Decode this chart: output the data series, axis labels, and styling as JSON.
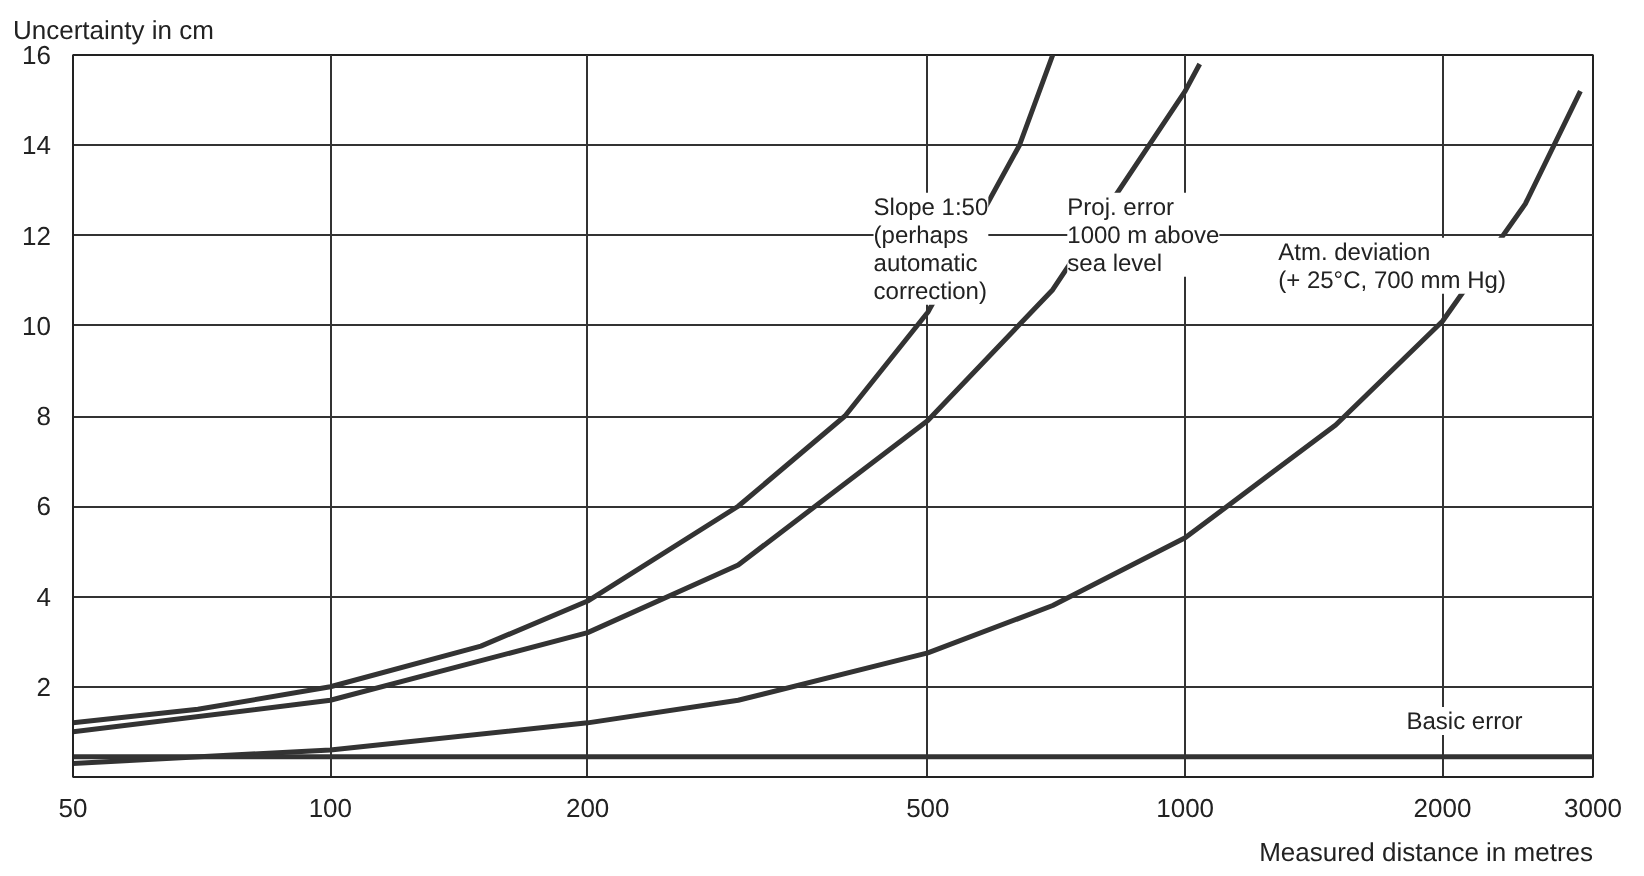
{
  "chart_data": {
    "type": "line",
    "xlabel": "Measured distance in metres",
    "ylabel": "Uncertainty in cm",
    "log": "x",
    "xlim": [
      50,
      3000
    ],
    "ylim": [
      0,
      16
    ],
    "xticks": [
      50,
      100,
      200,
      500,
      1000,
      2000,
      3000
    ],
    "yticks": [
      2,
      4,
      6,
      8,
      10,
      12,
      14,
      16
    ],
    "grid": true,
    "legend": false,
    "marker": "none",
    "line_style": "solid",
    "series": [
      {
        "name": "Slope 1:50\n(perhaps\nautomatic\ncorrection)",
        "color": "#333333",
        "x": [
          50,
          70,
          100,
          150,
          200,
          300,
          400,
          500,
          640,
          700
        ],
        "values": [
          1.2,
          1.5,
          2.0,
          2.9,
          3.9,
          6.0,
          8.0,
          10.3,
          14,
          16
        ]
      },
      {
        "name": "Proj. error\n1000 m above\nsea level",
        "color": "#333333",
        "x": [
          50,
          100,
          200,
          300,
          500,
          700,
          1000,
          1040
        ],
        "values": [
          1.0,
          1.7,
          3.2,
          4.7,
          7.9,
          10.8,
          15.2,
          15.8
        ]
      },
      {
        "name": "Atm. deviation\n(+ 25°C, 700 mm Hg)",
        "color": "#333333",
        "x": [
          50,
          100,
          200,
          300,
          500,
          700,
          1000,
          1500,
          2000,
          2500,
          2900
        ],
        "values": [
          0.3,
          0.6,
          1.2,
          1.7,
          2.75,
          3.8,
          5.3,
          7.8,
          10.1,
          12.7,
          15.2
        ]
      },
      {
        "name": "Basic error",
        "color": "#333333",
        "x": [
          50,
          3000
        ],
        "values": [
          0.45,
          0.45
        ]
      }
    ]
  }
}
